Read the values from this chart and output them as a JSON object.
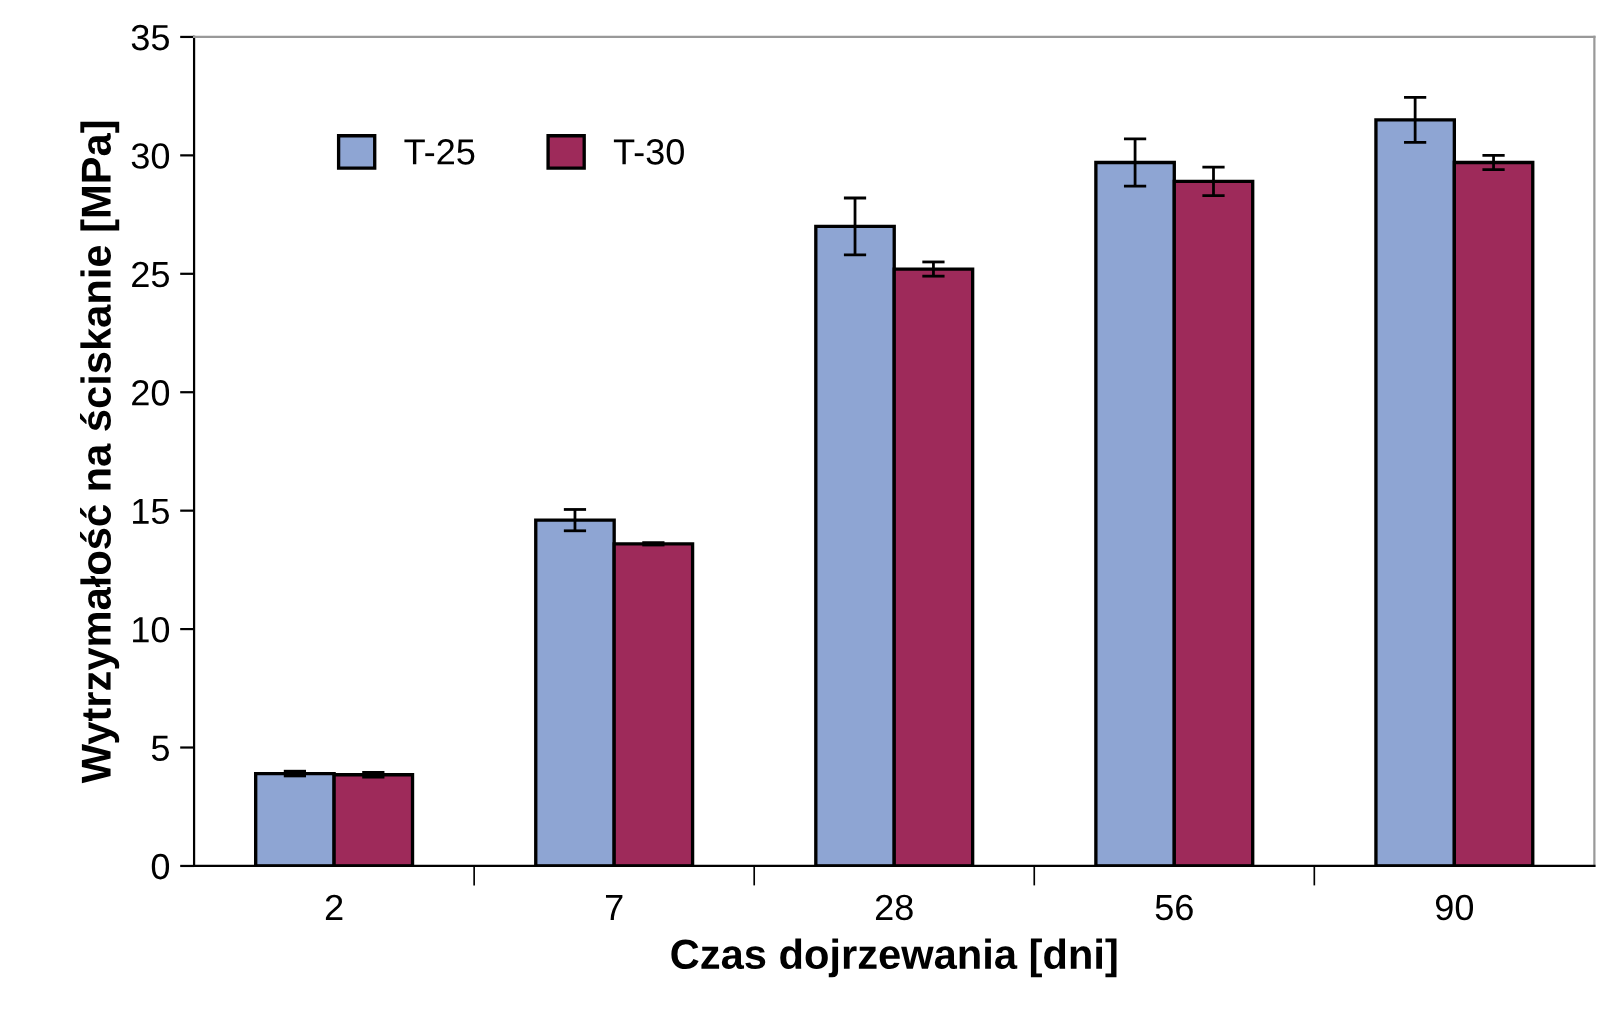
{
  "chart_data": {
    "type": "bar",
    "xlabel": "Czas dojrzewania [dni]",
    "ylabel": "Wytrzymałość na ściskanie [MPa]",
    "categories": [
      "2",
      "7",
      "28",
      "56",
      "90"
    ],
    "series": [
      {
        "name": "T-25",
        "color": "#8ea5d3",
        "values": [
          3.9,
          14.6,
          27.0,
          29.7,
          31.5
        ],
        "errors": [
          0.1,
          0.45,
          1.2,
          1.0,
          0.95
        ]
      },
      {
        "name": "T-30",
        "color": "#9e2a5a",
        "values": [
          3.85,
          13.6,
          25.2,
          28.9,
          29.7
        ],
        "errors": [
          0.1,
          0.05,
          0.3,
          0.6,
          0.3
        ]
      }
    ],
    "ylim": [
      0,
      35
    ],
    "yticks": [
      0,
      5,
      10,
      15,
      20,
      25,
      30,
      35
    ],
    "grid": false,
    "legend": "top left"
  }
}
